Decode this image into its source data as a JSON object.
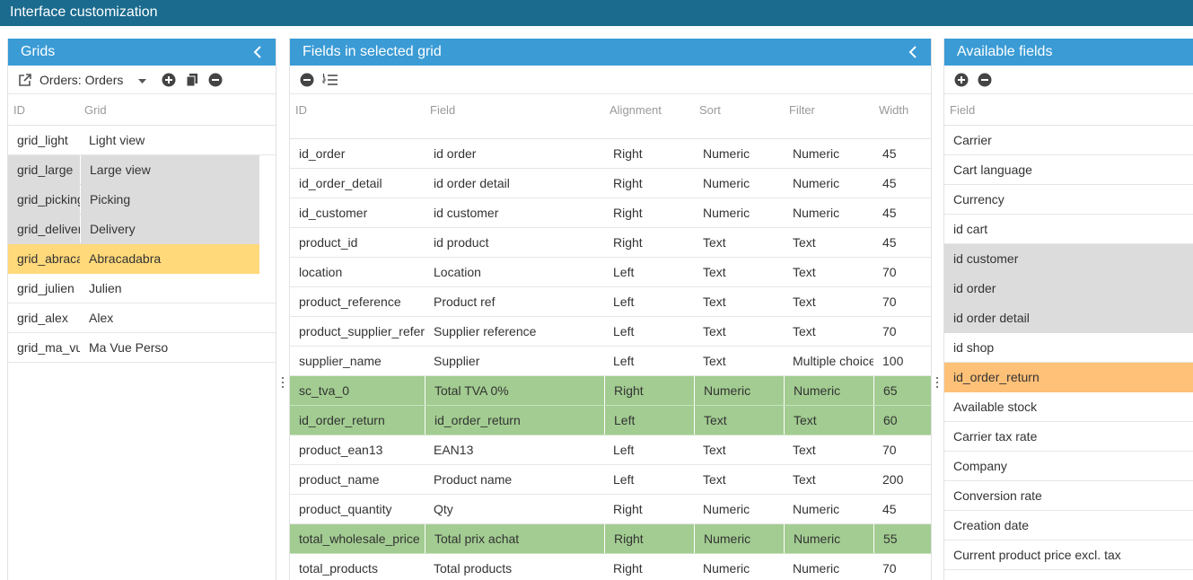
{
  "window": {
    "title": "Interface customization"
  },
  "grids_panel": {
    "title": "Grids",
    "selected_grid_label": "Orders: Orders",
    "columns": [
      "ID",
      "Grid"
    ],
    "rows": [
      {
        "id": "grid_light",
        "grid": "Light view",
        "state": ""
      },
      {
        "id": "grid_large",
        "grid": "Large view",
        "state": "sel"
      },
      {
        "id": "grid_picking",
        "grid": "Picking",
        "state": "sel"
      },
      {
        "id": "grid_delivery",
        "grid": "Delivery",
        "state": "sel"
      },
      {
        "id": "grid_abracadabra",
        "grid": "Abracadabra",
        "state": "yellow"
      },
      {
        "id": "grid_julien",
        "grid": "Julien",
        "state": ""
      },
      {
        "id": "grid_alex",
        "grid": "Alex",
        "state": ""
      },
      {
        "id": "grid_ma_vue_perso",
        "grid": "Ma Vue Perso",
        "state": ""
      }
    ]
  },
  "fields_panel": {
    "title": "Fields in selected grid",
    "columns": [
      "ID",
      "Field",
      "Alignment",
      "Sort",
      "Filter",
      "Width"
    ],
    "rows": [
      {
        "id": "id_order",
        "field": "id order",
        "alignment": "Right",
        "sort": "Numeric",
        "filter": "Numeric",
        "width": "45",
        "state": ""
      },
      {
        "id": "id_order_detail",
        "field": "id order detail",
        "alignment": "Right",
        "sort": "Numeric",
        "filter": "Numeric",
        "width": "45",
        "state": ""
      },
      {
        "id": "id_customer",
        "field": "id customer",
        "alignment": "Right",
        "sort": "Numeric",
        "filter": "Numeric",
        "width": "45",
        "state": ""
      },
      {
        "id": "product_id",
        "field": "id product",
        "alignment": "Right",
        "sort": "Text",
        "filter": "Text",
        "width": "45",
        "state": ""
      },
      {
        "id": "location",
        "field": "Location",
        "alignment": "Left",
        "sort": "Text",
        "filter": "Text",
        "width": "70",
        "state": ""
      },
      {
        "id": "product_reference",
        "field": "Product ref",
        "alignment": "Left",
        "sort": "Text",
        "filter": "Text",
        "width": "70",
        "state": ""
      },
      {
        "id": "product_supplier_reference",
        "field": "Supplier reference",
        "alignment": "Left",
        "sort": "Text",
        "filter": "Text",
        "width": "70",
        "state": ""
      },
      {
        "id": "supplier_name",
        "field": "Supplier",
        "alignment": "Left",
        "sort": "Text",
        "filter": "Multiple choices",
        "width": "100",
        "state": ""
      },
      {
        "id": "sc_tva_0",
        "field": "Total TVA 0%",
        "alignment": "Right",
        "sort": "Numeric",
        "filter": "Numeric",
        "width": "65",
        "state": "green"
      },
      {
        "id": "id_order_return",
        "field": "id_order_return",
        "alignment": "Left",
        "sort": "Text",
        "filter": "Text",
        "width": "60",
        "state": "green"
      },
      {
        "id": "product_ean13",
        "field": "EAN13",
        "alignment": "Left",
        "sort": "Text",
        "filter": "Text",
        "width": "70",
        "state": ""
      },
      {
        "id": "product_name",
        "field": "Product name",
        "alignment": "Left",
        "sort": "Text",
        "filter": "Text",
        "width": "200",
        "state": ""
      },
      {
        "id": "product_quantity",
        "field": "Qty",
        "alignment": "Right",
        "sort": "Numeric",
        "filter": "Numeric",
        "width": "45",
        "state": ""
      },
      {
        "id": "total_wholesale_price",
        "field": "Total prix achat",
        "alignment": "Right",
        "sort": "Numeric",
        "filter": "Numeric",
        "width": "55",
        "state": "green"
      },
      {
        "id": "total_products",
        "field": "Total products",
        "alignment": "Right",
        "sort": "Numeric",
        "filter": "Numeric",
        "width": "70",
        "state": ""
      }
    ]
  },
  "available_panel": {
    "title": "Available fields",
    "columns": [
      "Field"
    ],
    "rows": [
      {
        "field": "Carrier",
        "state": ""
      },
      {
        "field": "Cart language",
        "state": ""
      },
      {
        "field": "Currency",
        "state": ""
      },
      {
        "field": "id cart",
        "state": ""
      },
      {
        "field": "id customer",
        "state": "sel"
      },
      {
        "field": "id order",
        "state": "sel"
      },
      {
        "field": "id order detail",
        "state": "sel"
      },
      {
        "field": "id shop",
        "state": ""
      },
      {
        "field": "id_order_return",
        "state": "orange"
      },
      {
        "field": "Available stock",
        "state": ""
      },
      {
        "field": "Carrier tax rate",
        "state": ""
      },
      {
        "field": "Company",
        "state": ""
      },
      {
        "field": "Conversion rate",
        "state": ""
      },
      {
        "field": "Creation date",
        "state": ""
      },
      {
        "field": "Current product price excl. tax",
        "state": ""
      }
    ]
  },
  "icons": {
    "collapse": "chevron-left-icon",
    "open_external": "external-link-icon",
    "dropdown": "caret-down-icon",
    "add": "plus-circle-icon",
    "duplicate": "copy-icon",
    "remove": "minus-circle-icon",
    "order": "ordered-list-icon"
  },
  "colors": {
    "titlebar": "#1b6b8e",
    "panel_header": "#3a9bd5",
    "selected_row": "#dcdcdc",
    "active_row_yellow": "#ffd97a",
    "active_row_orange": "#ffc077",
    "green_row": "#a2cc91"
  }
}
